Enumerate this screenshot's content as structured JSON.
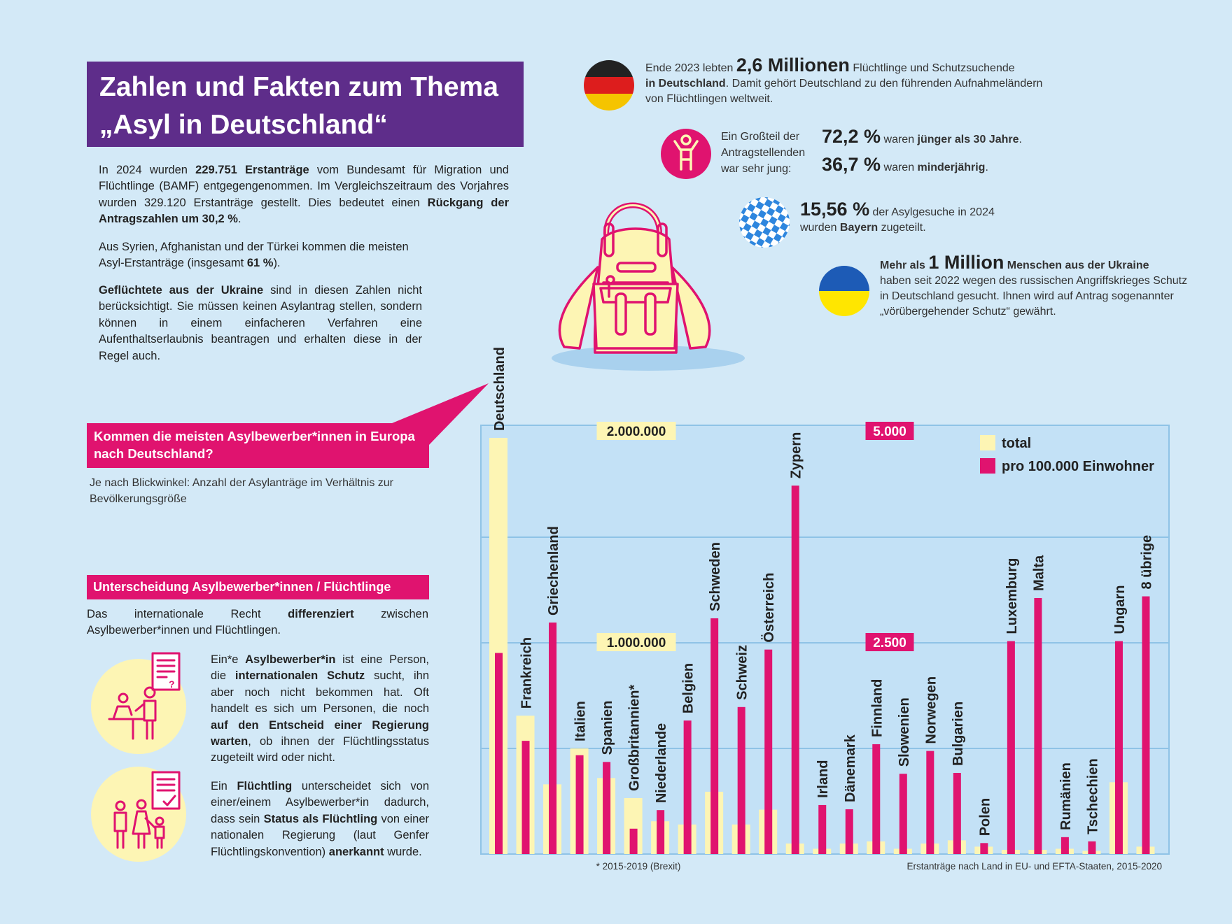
{
  "header": {
    "title_line1": "Zahlen und Fakten zum Thema",
    "title_line2": "„Asyl in Deutschland“"
  },
  "intro": {
    "p1_a": "In 2024 wurden ",
    "p1_b": "229.751 Erstanträge",
    "p1_c": " vom Bundesamt für Migration und Flüchtlinge (BAMF) entgegengenommen. Im Vergleichszeitraum des Vorjahres wurden 329.120 Erstanträge gestellt. Dies bedeutet einen ",
    "p1_d": "Rückgang der Antragszahlen um 30,2 %",
    "p1_e": ".",
    "p2_a": "Aus Syrien, Afghanistan und der Türkei kommen die meisten Asyl-Erstanträge (insgesamt ",
    "p2_b": "61 %",
    "p2_c": ").",
    "p3_a": "Geflüchtete aus der Ukraine",
    "p3_b": " sind in diesen Zahlen nicht berücksichtigt. Sie müssen keinen Asylantrag stellen, sondern können in einem einfacheren Verfahren eine Aufenthaltserlaubnis beantragen und erhalten diese in der Regel auch."
  },
  "question": {
    "title": "Kommen die meisten Asylbewerber*innen in Europa nach Deutschland?",
    "subtitle": "Je nach Blickwinkel: Anzahl der Asylanträge im Verhältnis zur Bevölkerungsgröße"
  },
  "distinction": {
    "title": "Unterscheidung Asylbewerber*innen / Flüchtlinge",
    "intro_a": "Das internationale Recht ",
    "intro_b": "differenziert",
    "intro_c": " zwischen Asylbewerber*innen und Flüchtlingen.",
    "asyl_a": "Ein*e ",
    "asyl_b": "Asylbewerber*in",
    "asyl_c": " ist eine Person, die ",
    "asyl_d": "internationalen Schutz",
    "asyl_e": " sucht, ihn aber noch nicht bekommen hat. Oft handelt es sich um Personen, die noch ",
    "asyl_f": "auf den Entscheid einer Regierung warten",
    "asyl_g": ", ob ihnen der Flüchtlingsstatus zugeteilt wird oder nicht.",
    "fl_a": "Ein ",
    "fl_b": "Flüchtling",
    "fl_c": " unterscheidet sich von einer/einem Asylbewerber*in dadurch, dass sein ",
    "fl_d": "Status als Flüchtling",
    "fl_e": " von einer nationalen Regierung (laut Genfer Flüchtlingskonvention) ",
    "fl_f": "anerkannt",
    "fl_g": " wurde."
  },
  "facts": {
    "de_a": "Ende 2023 lebten ",
    "de_big": "2,6 Millionen",
    "de_b": " Flüchtlinge und Schutzsuchende",
    "de_c": "in Deutschland",
    "de_d": ". Damit gehört Deutschland zu den führenden Aufnahmeländern von Flüchtlingen weltweit.",
    "young_label": "Ein Großteil der Antragstellenden war sehr jung:",
    "young1_big": "72,2 %",
    "young1_a": " waren ",
    "young1_b": "jünger als 30 Jahre",
    "young1_c": ".",
    "young2_big": "36,7 %",
    "young2_a": " waren ",
    "young2_b": "minderjährig",
    "young2_c": ".",
    "by_big": "15,56 %",
    "by_a": " der Asylgesuche in 2024",
    "by_b": "wurden ",
    "by_c": "Bayern",
    "by_d": " zugeteilt.",
    "ua_a": "Mehr als ",
    "ua_big": "1 Million",
    "ua_b": " Menschen aus der Ukraine",
    "ua_c": "haben seit 2022 wegen des russischen Angriffskrieges Schutz in Deutschland gesucht. Ihnen wird auf Antrag sogenannter „vörübergehender Schutz“ gewährt."
  },
  "colors": {
    "background": "#d3e9f7",
    "purple": "#5e2d8a",
    "pink": "#e0136f",
    "yellow": "#fdf5b4",
    "chart_bg": "#c3e1f6",
    "grid": "#8fc3e6"
  },
  "chart_data": {
    "type": "bar",
    "title": "Erstanträge nach Land in EU- und EFTA-Staaten, 2015-2020",
    "footnote": "* 2015-2019 (Brexit)",
    "categories": [
      "Deutschland",
      "Frankreich",
      "Griechenland",
      "Italien",
      "Spanien",
      "Großbritannien*",
      "Niederlande",
      "Belgien",
      "Schweden",
      "Schweiz",
      "Österreich",
      "Zypern",
      "Irland",
      "Dänemark",
      "Finnland",
      "Slowenien",
      "Norwegen",
      "Bulgarien",
      "Polen",
      "Luxemburg",
      "Malta",
      "Rumänien",
      "Tschechien",
      "Ungarn",
      "8 übrige"
    ],
    "series": [
      {
        "name": "total",
        "axis": "left",
        "values": [
          1970000,
          655000,
          330000,
          500000,
          360000,
          265000,
          155000,
          140000,
          295000,
          140000,
          210000,
          50000,
          25000,
          50000,
          60000,
          25000,
          50000,
          65000,
          35000,
          20000,
          20000,
          25000,
          15000,
          340000,
          35000
        ]
      },
      {
        "name": "pro 100.000 Einwohner",
        "axis": "right",
        "values": [
          2380,
          1340,
          2740,
          1170,
          1090,
          300,
          520,
          1580,
          2790,
          1740,
          2420,
          4360,
          580,
          530,
          1300,
          950,
          1220,
          960,
          130,
          2520,
          3030,
          200,
          150,
          2520,
          3050
        ]
      }
    ],
    "legend": [
      "total",
      "pro 100.000 Einwohner"
    ],
    "legend_position": "top-right",
    "y_left": {
      "ticks": [
        "2.000.000",
        "1.000.000"
      ],
      "tick_values": [
        2000000,
        1000000
      ],
      "range": [
        0,
        2000000
      ]
    },
    "y_right": {
      "ticks": [
        "5.000",
        "2.500"
      ],
      "tick_values": [
        5000,
        2500
      ],
      "range": [
        0,
        5000
      ]
    }
  }
}
